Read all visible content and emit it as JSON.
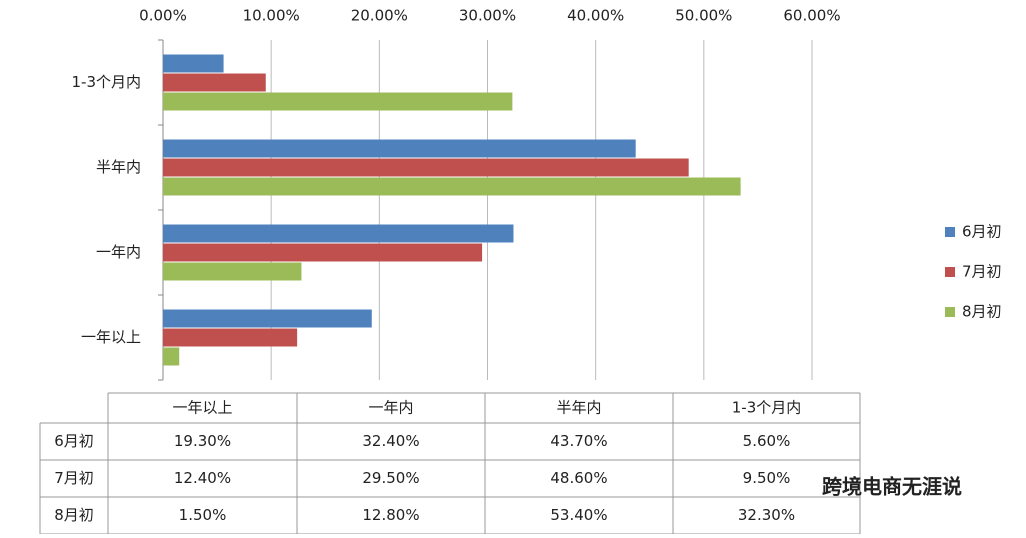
{
  "chart_data": {
    "type": "bar",
    "orientation": "horizontal",
    "categories": [
      "一年以上",
      "一年内",
      "半年内",
      "1-3个月内"
    ],
    "series": [
      {
        "name": "6月初",
        "color": "#4f81bd",
        "values": [
          19.3,
          32.4,
          43.7,
          5.6
        ],
        "value_labels": [
          "19.30%",
          "32.40%",
          "43.70%",
          "5.60%"
        ]
      },
      {
        "name": "7月初",
        "color": "#c0504d",
        "values": [
          12.4,
          29.5,
          48.6,
          9.5
        ],
        "value_labels": [
          "12.40%",
          "29.50%",
          "48.60%",
          "9.50%"
        ]
      },
      {
        "name": "8月初",
        "color": "#9bbb59",
        "values": [
          1.5,
          12.8,
          53.4,
          32.3
        ],
        "value_labels": [
          "1.50%",
          "12.80%",
          "53.40%",
          "32.30%"
        ]
      }
    ],
    "xlim": [
      0,
      60
    ],
    "xticks": [
      {
        "value": 0,
        "label": "0.00%"
      },
      {
        "value": 10,
        "label": "10.00%"
      },
      {
        "value": 20,
        "label": "20.00%"
      },
      {
        "value": 30,
        "label": "30.00%"
      },
      {
        "value": 40,
        "label": "40.00%"
      },
      {
        "value": 50,
        "label": "50.00%"
      },
      {
        "value": 60,
        "label": "60.00%"
      }
    ],
    "grid": true,
    "legend": "right",
    "watermark": "跨境电商无涯说"
  }
}
